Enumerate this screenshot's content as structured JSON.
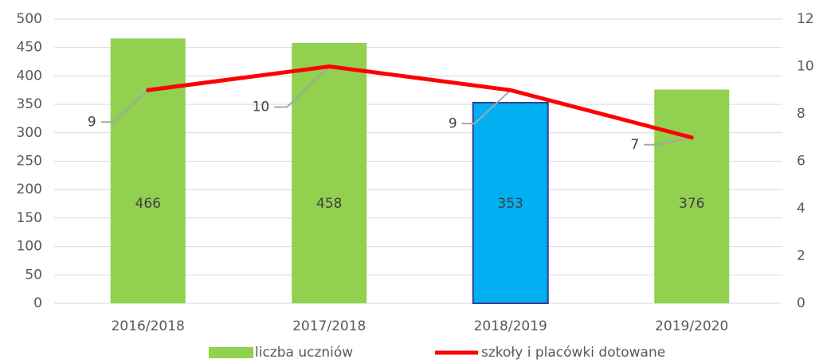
{
  "chart_data": {
    "type": "bar+line",
    "categories": [
      "2016/2018",
      "2017/2018",
      "2018/2019",
      "2019/2020"
    ],
    "series": [
      {
        "name": "liczba uczniów",
        "type": "bar",
        "axis": "y",
        "color": "#92d050",
        "colors": [
          "#92d050",
          "#92d050",
          "#00b0f0",
          "#92d050"
        ],
        "edgecolors": [
          "none",
          "none",
          "#3b3b9e",
          "none"
        ],
        "values": [
          466,
          458,
          353,
          376
        ]
      },
      {
        "name": "szkoły i placówki dotowane",
        "type": "line",
        "axis": "y2",
        "color": "#ff0000",
        "values": [
          9,
          10,
          9,
          7
        ]
      }
    ],
    "ylim": [
      0,
      500
    ],
    "yticks": [
      0,
      50,
      100,
      150,
      200,
      250,
      300,
      350,
      400,
      450,
      500
    ],
    "y2lim": [
      0,
      12
    ],
    "y2ticks": [
      0,
      2,
      4,
      6,
      8,
      10,
      12
    ],
    "grid": true,
    "legend": "bottom"
  }
}
